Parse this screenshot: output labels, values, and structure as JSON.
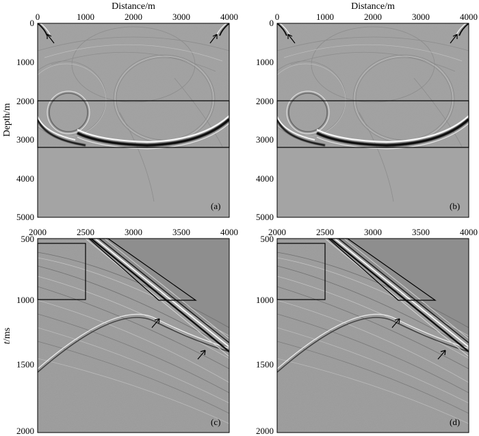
{
  "figure": {
    "top_xlabel": "Distance/m",
    "depth_ylabel": "Depth/m",
    "time_ylabel_italic": "t",
    "time_ylabel_unit": "/ms",
    "panels": [
      {
        "tag": "(a)"
      },
      {
        "tag": "(b)"
      },
      {
        "tag": "(c)"
      },
      {
        "tag": "(d)"
      }
    ],
    "distance_ticks": [
      "0",
      "1000",
      "2000",
      "3000",
      "4000"
    ],
    "depth_ticks": [
      "0",
      "1000",
      "2000",
      "3000",
      "4000",
      "5000"
    ],
    "shot_x_ticks": [
      "2000",
      "2500",
      "3000",
      "3500",
      "4000"
    ],
    "time_ticks": [
      "500",
      "1000",
      "1500",
      "2000"
    ]
  },
  "chart_data": [
    {
      "type": "image",
      "panel": "(a)",
      "xlabel": "Distance/m",
      "ylabel": "Depth/m",
      "xlim": [
        0,
        4000
      ],
      "ylim": [
        5000,
        0
      ],
      "box_depth_range": [
        2000,
        3200
      ]
    },
    {
      "type": "image",
      "panel": "(b)",
      "xlabel": "Distance/m",
      "ylabel": "",
      "xlim": [
        0,
        4000
      ],
      "ylim": [
        5000,
        0
      ],
      "box_depth_range": [
        2000,
        3200
      ]
    },
    {
      "type": "image",
      "panel": "(c)",
      "xlabel": "",
      "ylabel": "t/ms",
      "xlim": [
        2000,
        4000
      ],
      "ylim": [
        2000,
        500
      ],
      "rect_box": {
        "x": [
          2000,
          2500
        ],
        "t": [
          550,
          1000
        ]
      },
      "slanted_box": {
        "top_x": [
          2500,
          2700
        ],
        "bottom_x": [
          3250,
          3650
        ],
        "t": [
          500,
          1000
        ]
      }
    },
    {
      "type": "image",
      "panel": "(d)",
      "xlabel": "",
      "ylabel": "",
      "xlim": [
        2000,
        4000
      ],
      "ylim": [
        2000,
        500
      ],
      "rect_box": {
        "x": [
          2000,
          2500
        ],
        "t": [
          550,
          1000
        ]
      },
      "slanted_box": {
        "top_x": [
          2500,
          2700
        ],
        "bottom_x": [
          3250,
          3650
        ],
        "t": [
          500,
          1000
        ]
      }
    }
  ]
}
